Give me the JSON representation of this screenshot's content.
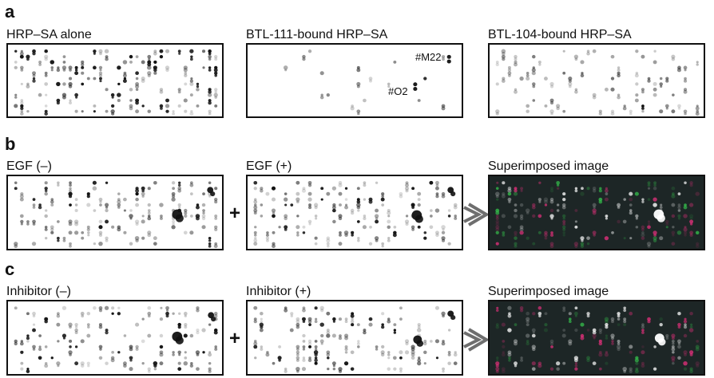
{
  "panels": {
    "a": {
      "letter": "a",
      "labels": [
        "HRP–SA alone",
        "BTL-111-bound HRP–SA",
        "BTL-104-bound HRP–SA"
      ],
      "annotations": [
        "#M22",
        "#O2"
      ]
    },
    "b": {
      "letter": "b",
      "labels": [
        "EGF (–)",
        "EGF (+)",
        "Superimposed image"
      ],
      "operator": "+"
    },
    "c": {
      "letter": "c",
      "labels": [
        "Inhibitor (–)",
        "Inhibitor (+)",
        "Superimposed image"
      ],
      "operator": "+"
    }
  },
  "colors": {
    "dark_background": "#1d2626",
    "spot_black": "#111111",
    "overlay_magenta": "#e0307a",
    "overlay_green": "#35c04c",
    "overlay_white": "#ffffff",
    "arrow_gray": "#6e6e6e"
  }
}
